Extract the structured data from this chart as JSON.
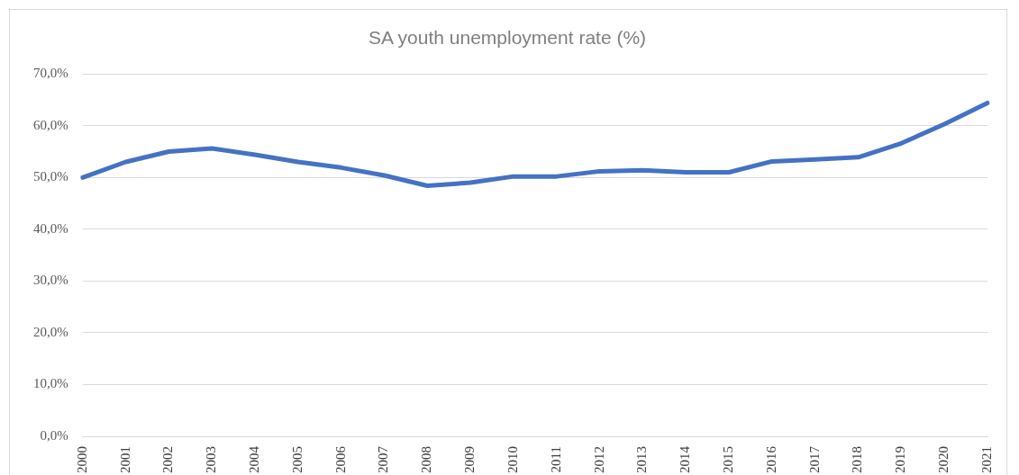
{
  "chart_data": {
    "type": "line",
    "title": "SA youth unemployment rate (%)",
    "categories": [
      "2000",
      "2001",
      "2002",
      "2003",
      "2004",
      "2005",
      "2006",
      "2007",
      "2008",
      "2009",
      "2010",
      "2011",
      "2012",
      "2013",
      "2014",
      "2015",
      "2016",
      "2017",
      "2018",
      "2019",
      "2020",
      "2021"
    ],
    "series": [
      {
        "color": "#4472c4",
        "values": [
          50.0,
          53.0,
          55.0,
          55.6,
          54.4,
          53.0,
          51.9,
          50.4,
          48.4,
          49.0,
          50.2,
          50.2,
          51.2,
          51.4,
          51.0,
          51.0,
          53.1,
          53.5,
          53.9,
          56.6,
          60.3,
          64.4
        ]
      }
    ],
    "ylim": [
      0,
      70
    ],
    "yticks": [
      {
        "value": 0,
        "label": "0,0%"
      },
      {
        "value": 10,
        "label": "10,0%"
      },
      {
        "value": 20,
        "label": "20,0%"
      },
      {
        "value": 30,
        "label": "30,0%"
      },
      {
        "value": 40,
        "label": "40,0%"
      },
      {
        "value": 50,
        "label": "50,0%"
      },
      {
        "value": 60,
        "label": "60,0%"
      },
      {
        "value": 70,
        "label": "70,0%"
      }
    ],
    "grid": "y",
    "legend": false,
    "marker": "none",
    "line_style": "solid"
  }
}
